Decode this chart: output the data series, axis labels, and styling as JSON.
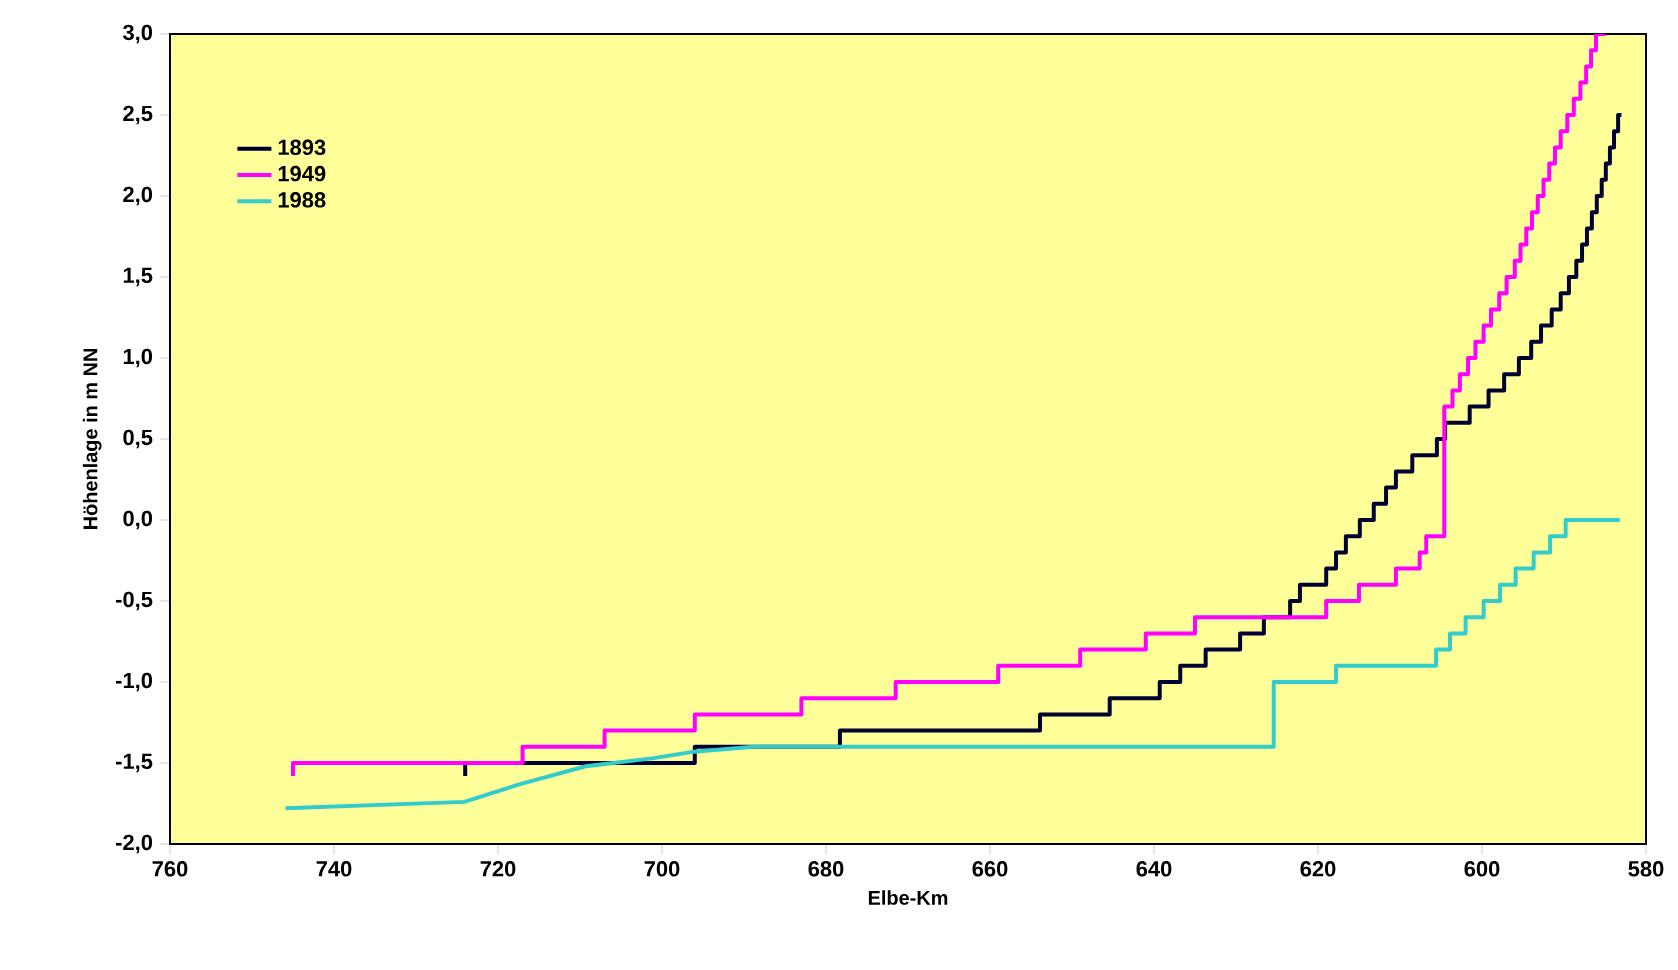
{
  "chart_data": {
    "type": "step",
    "xlabel": "Elbe-Km",
    "ylabel": "Höhenlage in m NN",
    "xlim": [
      760,
      580
    ],
    "ylim": [
      -2.0,
      3.0
    ],
    "xticks": [
      760,
      740,
      720,
      700,
      680,
      660,
      640,
      620,
      600,
      580
    ],
    "yticks": [
      {
        "value": -2.0,
        "label": "-2,0"
      },
      {
        "value": -1.5,
        "label": "-1,5"
      },
      {
        "value": -1.0,
        "label": "-1,0"
      },
      {
        "value": -0.5,
        "label": "-0,5"
      },
      {
        "value": 0.0,
        "label": "0,0"
      },
      {
        "value": 0.5,
        "label": "0,5"
      },
      {
        "value": 1.0,
        "label": "1,0"
      },
      {
        "value": 1.5,
        "label": "1,5"
      },
      {
        "value": 2.0,
        "label": "2,0"
      },
      {
        "value": 2.5,
        "label": "2,5"
      },
      {
        "value": 3.0,
        "label": "3,0"
      }
    ],
    "legend": "top left",
    "grid": false,
    "series": [
      {
        "name": "1893",
        "color": "#000033",
        "x": [
          724,
          724,
          696,
          678.3,
          653.9,
          645.4,
          639.3,
          636.8,
          633.7,
          629.5,
          626.6,
          623.4,
          622.2,
          619,
          617.8,
          616.6,
          614.9,
          613.2,
          611.7,
          610.5,
          608.5,
          605.5,
          604.5,
          601.5,
          599.2,
          597.3,
          595.5,
          594,
          592.8,
          591.5,
          590.4,
          589.4,
          588.5,
          587.8,
          587.2,
          586.6,
          586.0,
          585.4,
          584.9,
          584.4,
          583.9,
          583.4,
          583.0
        ],
        "values": [
          -1.58,
          -1.5,
          -1.4,
          -1.3,
          -1.2,
          -1.1,
          -1.0,
          -0.9,
          -0.8,
          -0.7,
          -0.6,
          -0.5,
          -0.4,
          -0.3,
          -0.2,
          -0.1,
          0.0,
          0.1,
          0.2,
          0.3,
          0.4,
          0.5,
          0.6,
          0.7,
          0.8,
          0.9,
          1.0,
          1.1,
          1.2,
          1.3,
          1.4,
          1.5,
          1.6,
          1.7,
          1.8,
          1.9,
          2.0,
          2.1,
          2.2,
          2.3,
          2.4,
          2.5,
          2.5
        ]
      },
      {
        "name": "1949",
        "color": "#ff00ff",
        "x": [
          745,
          745,
          717,
          707,
          696,
          683,
          671.5,
          659,
          649,
          641,
          635,
          619,
          615,
          610.5,
          607.6,
          606.8,
          606,
          604.6,
          603.6,
          602.7,
          601.7,
          600.8,
          599.8,
          598.9,
          597.9,
          597.0,
          596.0,
          595.3,
          594.6,
          593.9,
          593.2,
          592.5,
          591.8,
          591.1,
          590.4,
          589.6,
          588.8,
          588.0,
          587.3,
          586.7,
          586.1,
          584.9
        ],
        "values": [
          -1.58,
          -1.5,
          -1.4,
          -1.3,
          -1.2,
          -1.1,
          -1.0,
          -0.9,
          -0.8,
          -0.7,
          -0.6,
          -0.5,
          -0.4,
          -0.3,
          -0.2,
          -0.1,
          -0.1,
          0.7,
          0.8,
          0.9,
          1.0,
          1.1,
          1.2,
          1.3,
          1.4,
          1.5,
          1.6,
          1.7,
          1.8,
          1.9,
          2.0,
          2.1,
          2.2,
          2.3,
          2.4,
          2.5,
          2.6,
          2.7,
          2.8,
          2.9,
          3.0,
          3.0
        ]
      },
      {
        "name": "1988",
        "color": "#33cccc",
        "type": "line",
        "x": [
          745.9,
          724.1,
          717.3,
          709.3,
          701,
          696.1,
          688.8,
          625.4,
          625.4,
          617.8,
          617.8,
          605.6,
          605.6,
          603.9,
          603.9,
          602,
          602,
          599.8,
          599.8,
          597.8,
          597.8,
          595.9,
          595.9,
          593.7,
          593.7,
          591.7,
          591.7,
          589.8,
          589.8,
          583.2
        ],
        "values": [
          -1.78,
          -1.74,
          -1.63,
          -1.52,
          -1.47,
          -1.43,
          -1.4,
          -1.4,
          -1.0,
          -1.0,
          -0.9,
          -0.9,
          -0.8,
          -0.8,
          -0.7,
          -0.7,
          -0.6,
          -0.6,
          -0.5,
          -0.5,
          -0.4,
          -0.4,
          -0.3,
          -0.3,
          -0.2,
          -0.2,
          -0.1,
          -0.1,
          0.0,
          0.0
        ]
      }
    ]
  }
}
